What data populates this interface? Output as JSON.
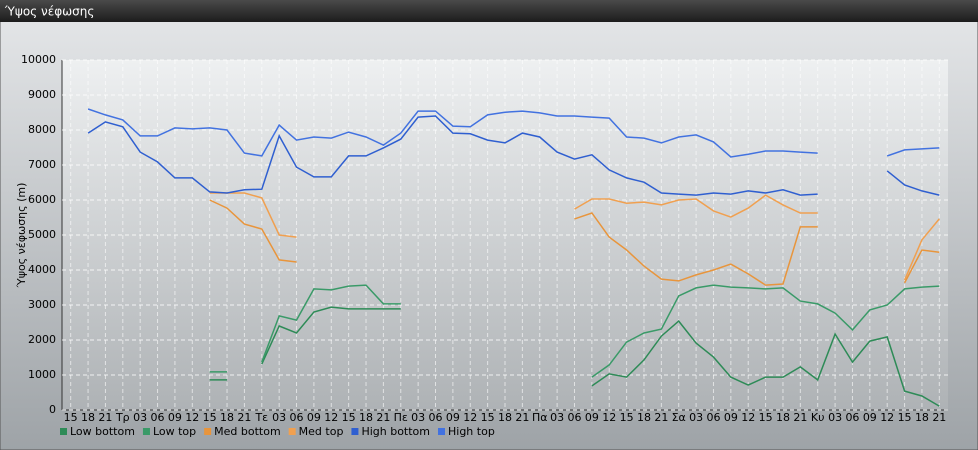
{
  "chart_data": {
    "type": "line",
    "title": "Ύψος νέφωσης",
    "y_label": "Ύψος νέφωσης (m)",
    "categories": [
      "15",
      "18",
      "21",
      "Τρ",
      "03",
      "06",
      "09",
      "12",
      "15",
      "18",
      "21",
      "Τε",
      "03",
      "06",
      "09",
      "12",
      "15",
      "18",
      "21",
      "Πε",
      "03",
      "06",
      "09",
      "12",
      "15",
      "18",
      "21",
      "Πα",
      "03",
      "06",
      "09",
      "12",
      "15",
      "18",
      "21",
      "Σα",
      "03",
      "06",
      "09",
      "12",
      "15",
      "18",
      "21",
      "Κυ",
      "03",
      "06",
      "09",
      "12",
      "15",
      "18",
      "21"
    ],
    "series": [
      {
        "name": "Low bottom",
        "color": "#2e8b57",
        "values": [
          null,
          null,
          null,
          null,
          null,
          null,
          null,
          null,
          860,
          860,
          null,
          1310,
          2400,
          2200,
          2800,
          2940,
          2890,
          2890,
          2890,
          2890,
          null,
          null,
          null,
          null,
          null,
          null,
          null,
          null,
          null,
          null,
          690,
          1030,
          940,
          1430,
          2110,
          2540,
          1910,
          1510,
          940,
          710,
          940,
          940,
          1230,
          860,
          2170,
          1370,
          1970,
          2090,
          540,
          400,
          110
        ]
      },
      {
        "name": "Low top",
        "color": "#3a9a68",
        "values": [
          null,
          null,
          null,
          null,
          null,
          null,
          null,
          null,
          1090,
          1090,
          null,
          1370,
          2690,
          2570,
          3460,
          3430,
          3540,
          3570,
          3030,
          3030,
          null,
          null,
          null,
          null,
          null,
          null,
          null,
          null,
          null,
          null,
          940,
          1290,
          1940,
          2200,
          2310,
          3260,
          3490,
          3570,
          3510,
          3490,
          3460,
          3490,
          3110,
          3030,
          2770,
          2290,
          2860,
          3000,
          3460,
          3510,
          3540
        ]
      },
      {
        "name": "Med bottom",
        "color": "#e8953c",
        "values": [
          null,
          null,
          null,
          null,
          null,
          null,
          null,
          null,
          6000,
          5770,
          5310,
          5170,
          4290,
          4230,
          null,
          null,
          null,
          null,
          null,
          null,
          null,
          null,
          null,
          null,
          null,
          null,
          null,
          null,
          null,
          5460,
          5630,
          4940,
          4570,
          4110,
          3740,
          3690,
          3860,
          4000,
          4170,
          3890,
          3570,
          3600,
          5230,
          5230,
          null,
          null,
          null,
          null,
          3630,
          4570,
          4510
        ]
      },
      {
        "name": "Med top",
        "color": "#f0a050",
        "values": [
          null,
          null,
          null,
          null,
          null,
          null,
          null,
          null,
          6200,
          6200,
          6200,
          6060,
          5000,
          4940,
          null,
          null,
          null,
          null,
          null,
          null,
          null,
          null,
          null,
          null,
          null,
          null,
          null,
          null,
          null,
          5740,
          6030,
          6030,
          5910,
          5940,
          5860,
          6000,
          6030,
          5690,
          5510,
          5770,
          6140,
          5860,
          5630,
          5630,
          null,
          null,
          null,
          null,
          3710,
          4860,
          5460
        ]
      },
      {
        "name": "High bottom",
        "color": "#2f5fd0",
        "values": [
          null,
          7910,
          8230,
          8090,
          7370,
          7090,
          6630,
          6630,
          6230,
          6200,
          6290,
          6310,
          7830,
          6940,
          6660,
          6660,
          7260,
          7260,
          7490,
          7740,
          8370,
          8400,
          7910,
          7890,
          7710,
          7630,
          7910,
          7800,
          7370,
          7170,
          7290,
          6860,
          6630,
          6510,
          6200,
          6170,
          6140,
          6200,
          6170,
          6260,
          6200,
          6290,
          6140,
          6170,
          null,
          null,
          null,
          6830,
          6430,
          6260,
          6140
        ]
      },
      {
        "name": "High top",
        "color": "#4272e0",
        "values": [
          null,
          8600,
          8430,
          8290,
          7830,
          7830,
          8060,
          8030,
          8060,
          8000,
          7340,
          7260,
          8140,
          7710,
          7800,
          7770,
          7940,
          7800,
          7570,
          7910,
          8540,
          8540,
          8110,
          8090,
          8430,
          8510,
          8540,
          8490,
          8400,
          8400,
          8370,
          8340,
          7800,
          7770,
          7630,
          7800,
          7860,
          7660,
          7230,
          7310,
          7400,
          7400,
          7370,
          7340,
          null,
          null,
          null,
          7260,
          7430,
          7460,
          7490
        ]
      }
    ],
    "ylim": [
      0,
      10000
    ],
    "yticks": [
      0,
      1000,
      2000,
      3000,
      4000,
      5000,
      6000,
      7000,
      8000,
      9000,
      10000
    ],
    "grid": true
  }
}
